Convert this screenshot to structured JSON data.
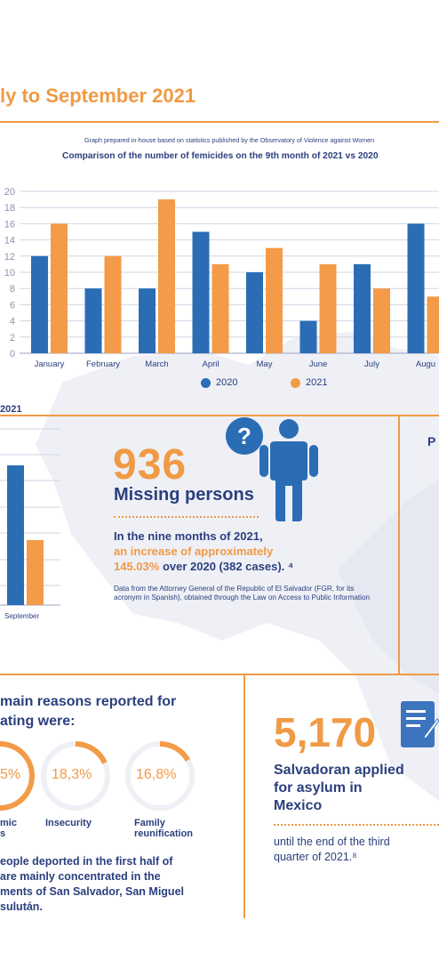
{
  "header": {
    "title": "ly to September 2021"
  },
  "chart_note": "Graph prepared in-house based on statistics published by the Observatory of Violence against Women",
  "chart_data": {
    "type": "bar",
    "title": "Comparison of the number of femicides on the 9th month of 2021 vs 2020",
    "categories": [
      "January",
      "February",
      "March",
      "April",
      "May",
      "June",
      "July",
      "Augu"
    ],
    "series": [
      {
        "name": "2020",
        "values": [
          12,
          8,
          8,
          15,
          10,
          4,
          11,
          16
        ],
        "color": "#2a6db5"
      },
      {
        "name": "2021",
        "values": [
          16,
          12,
          19,
          11,
          13,
          11,
          8,
          7
        ],
        "color": "#f39b48"
      }
    ],
    "yticks": [
      "20",
      "18",
      "16",
      "14",
      "12",
      "10",
      "8",
      "6",
      "4",
      "2",
      "0"
    ],
    "ylim": [
      0,
      20
    ],
    "grid": true,
    "legend": "bottom"
  },
  "mini_chart": {
    "title": "2021",
    "category": "September",
    "values": {
      "2020": 106,
      "2021": 52
    },
    "ymax": 120
  },
  "missing": {
    "number": "936",
    "label": "Missing persons",
    "line1": "In the nine months of 2021,",
    "line2": "an increase of approximately",
    "line3_orange": "145.03%",
    "line3_rest": " over 2020 (382 cases). ⁴",
    "source": "Data from the Attorney General of the Republic of El Salvador (FGR, for its acronym in Spanish), obtained through the Law on Access to Public Information",
    "icons": [
      "question-icon",
      "person-icon"
    ]
  },
  "right_box_letter": "P",
  "reasons": {
    "heading_line1": "main reasons reported for",
    "heading_line2": "ating were:",
    "items": [
      {
        "pct": "5%",
        "label1": "mic",
        "label2": "s",
        "fraction": 0.648
      },
      {
        "pct": "18,3%",
        "label1": "Insecurity",
        "label2": "",
        "fraction": 0.183
      },
      {
        "pct": "16,8%",
        "label1": "Family",
        "label2": "reunification",
        "fraction": 0.168
      }
    ]
  },
  "deported": {
    "line1": "eople deported in the first half of",
    "line2": "are mainly concentrated in the",
    "line3": "ments of San Salvador, San Miguel",
    "line4": "sulután."
  },
  "asylum": {
    "number": "5,170",
    "line1": "Salvadoran applied",
    "line2": "for asylum in",
    "line3": "Mexico",
    "sub1": "until the end of the third",
    "sub2": "quarter of 2021.⁸",
    "icon": "document-pen-icon"
  }
}
